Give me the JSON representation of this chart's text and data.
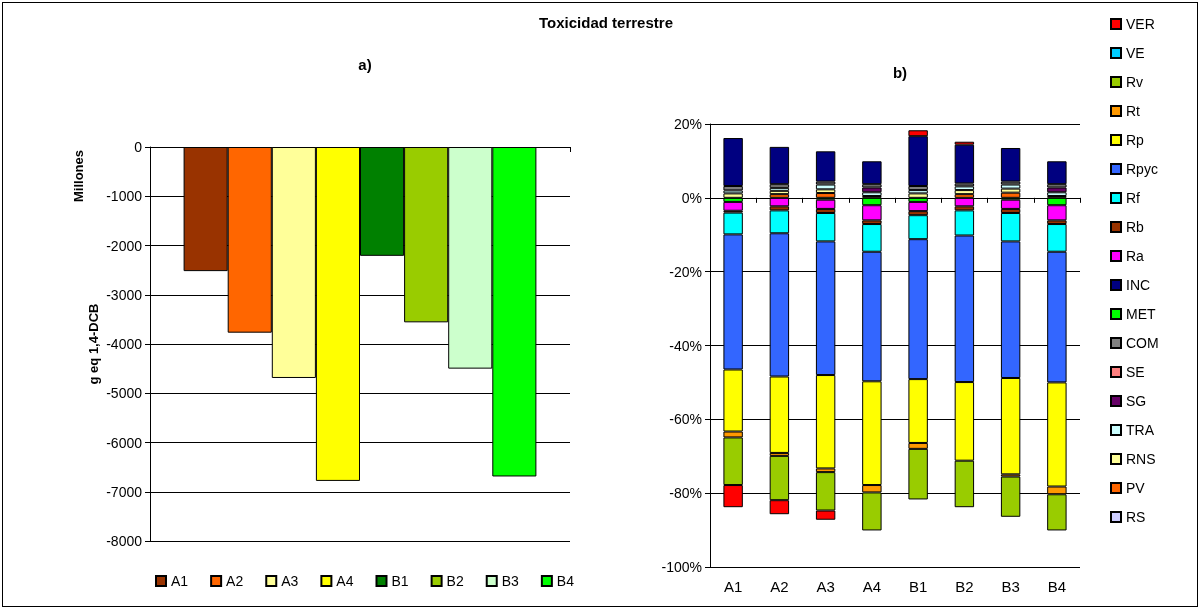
{
  "chart_data": [
    {
      "type": "bar",
      "title": "Toxicidad terrestre",
      "subtitle": "a)",
      "ylabel": "g eq 1,4-DCB",
      "annotations": [
        "Millones"
      ],
      "categories": [
        null
      ],
      "ylim": [
        -8000,
        0
      ],
      "yticks": [
        0,
        -1000,
        -2000,
        -3000,
        -4000,
        -5000,
        -6000,
        -7000,
        -8000
      ],
      "grid": "y",
      "legend": "bottom",
      "tick_labels": "y",
      "series": [
        {
          "name": "A1",
          "color": "#993300",
          "values": [
            -2520
          ]
        },
        {
          "name": "A2",
          "color": "#ff6600",
          "values": [
            -3770
          ]
        },
        {
          "name": "A3",
          "color": "#ffff99",
          "values": [
            -4690
          ]
        },
        {
          "name": "A4",
          "color": "#ffff00",
          "values": [
            -6780
          ]
        },
        {
          "name": "B1",
          "color": "#008000",
          "values": [
            -2210
          ]
        },
        {
          "name": "B2",
          "color": "#99cc00",
          "values": [
            -3560
          ]
        },
        {
          "name": "B3",
          "color": "#ccffcc",
          "values": [
            -4500
          ]
        },
        {
          "name": "B4",
          "color": "#00ff00",
          "values": [
            -6690
          ]
        }
      ]
    },
    {
      "type": "bar",
      "title": "b)",
      "stacked": true,
      "categories": [
        "A1",
        "A2",
        "A3",
        "A4",
        "B1",
        "B2",
        "B3",
        "B4"
      ],
      "ylim": [
        -100,
        20
      ],
      "yticks": [
        {
          "value": 20,
          "label": "20%"
        },
        {
          "value": 0,
          "label": "0%"
        },
        {
          "value": -20,
          "label": "-20%"
        },
        {
          "value": -40,
          "label": "-40%"
        },
        {
          "value": -60,
          "label": "-60%"
        },
        {
          "value": -80,
          "label": "-80%"
        },
        {
          "value": -100,
          "label": "-100%"
        }
      ],
      "grid": "y",
      "legend": "right",
      "series": [
        {
          "name": "RS",
          "color": "#ccccff",
          "values": [
            null,
            null,
            null,
            null,
            null,
            null,
            null,
            null
          ]
        },
        {
          "name": "PV",
          "color": "#ff6600",
          "values": [
            null,
            1.0,
            1.3,
            0.5,
            null,
            1.0,
            1.4,
            0.5
          ]
        },
        {
          "name": "RNS",
          "color": "#ffff99",
          "values": [
            1.2,
            0.9,
            1.0,
            null,
            1.2,
            1.1,
            1.1,
            null
          ]
        },
        {
          "name": "TRA",
          "color": "#ccffff",
          "values": [
            0.8,
            0.8,
            1.3,
            1.0,
            0.9,
            1.0,
            1.1,
            1.0
          ]
        },
        {
          "name": "SG",
          "color": "#660066",
          "values": [
            null,
            null,
            null,
            1.3,
            null,
            null,
            null,
            1.3
          ]
        },
        {
          "name": "SE",
          "color": "#ff8080",
          "values": [
            null,
            null,
            null,
            null,
            null,
            null,
            null,
            null
          ]
        },
        {
          "name": "COM",
          "color": "#808080",
          "values": [
            1.2,
            1.0,
            0.8,
            0.9,
            1.1,
            0.8,
            0.8,
            0.9
          ]
        },
        {
          "name": "MET",
          "color": "#00ff00",
          "values": [
            -1.1,
            null,
            -0.5,
            -2.0,
            -1.1,
            null,
            -0.5,
            -2.0
          ]
        },
        {
          "name": "INC",
          "color": "#000080",
          "values": [
            13.0,
            10.1,
            8.2,
            6.2,
            13.5,
            10.5,
            9.1,
            6.2
          ]
        },
        {
          "name": "Ra",
          "color": "#ff00ff",
          "values": [
            -2.4,
            -2.3,
            -2.5,
            -4.1,
            -2.5,
            -2.3,
            -2.5,
            -4.1
          ]
        },
        {
          "name": "Rb",
          "color": "#993300",
          "values": [
            -0.5,
            -1.1,
            -1.1,
            -1.0,
            -1.1,
            -1.1,
            -1.1,
            -1.0
          ]
        },
        {
          "name": "Rf",
          "color": "#00ffff",
          "values": [
            -5.9,
            -6.2,
            -7.7,
            -7.5,
            -6.5,
            -6.8,
            -7.7,
            -7.5
          ]
        },
        {
          "name": "Rpyc",
          "color": "#3366ff",
          "values": [
            -36.6,
            -38.8,
            -36.2,
            -35.1,
            -37.9,
            -39.7,
            -37.0,
            -35.4
          ]
        },
        {
          "name": "Rp",
          "color": "#ffff00",
          "values": [
            -16.8,
            -20.7,
            -25.3,
            -28.1,
            -17.3,
            -21.3,
            -26.1,
            -28.2
          ]
        },
        {
          "name": "Rt",
          "color": "#ff9900",
          "values": [
            -1.6,
            -0.8,
            -1.0,
            -2.0,
            -1.6,
            null,
            -0.6,
            -2.1
          ]
        },
        {
          "name": "Rv",
          "color": "#99cc00",
          "values": [
            -12.9,
            -12.0,
            -10.4,
            -10.3,
            -13.7,
            -12.6,
            -10.9,
            -9.8
          ]
        },
        {
          "name": "VE",
          "color": "#00ccff",
          "values": [
            null,
            null,
            null,
            null,
            null,
            null,
            null,
            null
          ]
        },
        {
          "name": "VER",
          "color": "#ff0000",
          "values": [
            -6.0,
            -3.8,
            -2.5,
            null,
            1.6,
            0.8,
            null,
            null
          ]
        }
      ]
    }
  ]
}
